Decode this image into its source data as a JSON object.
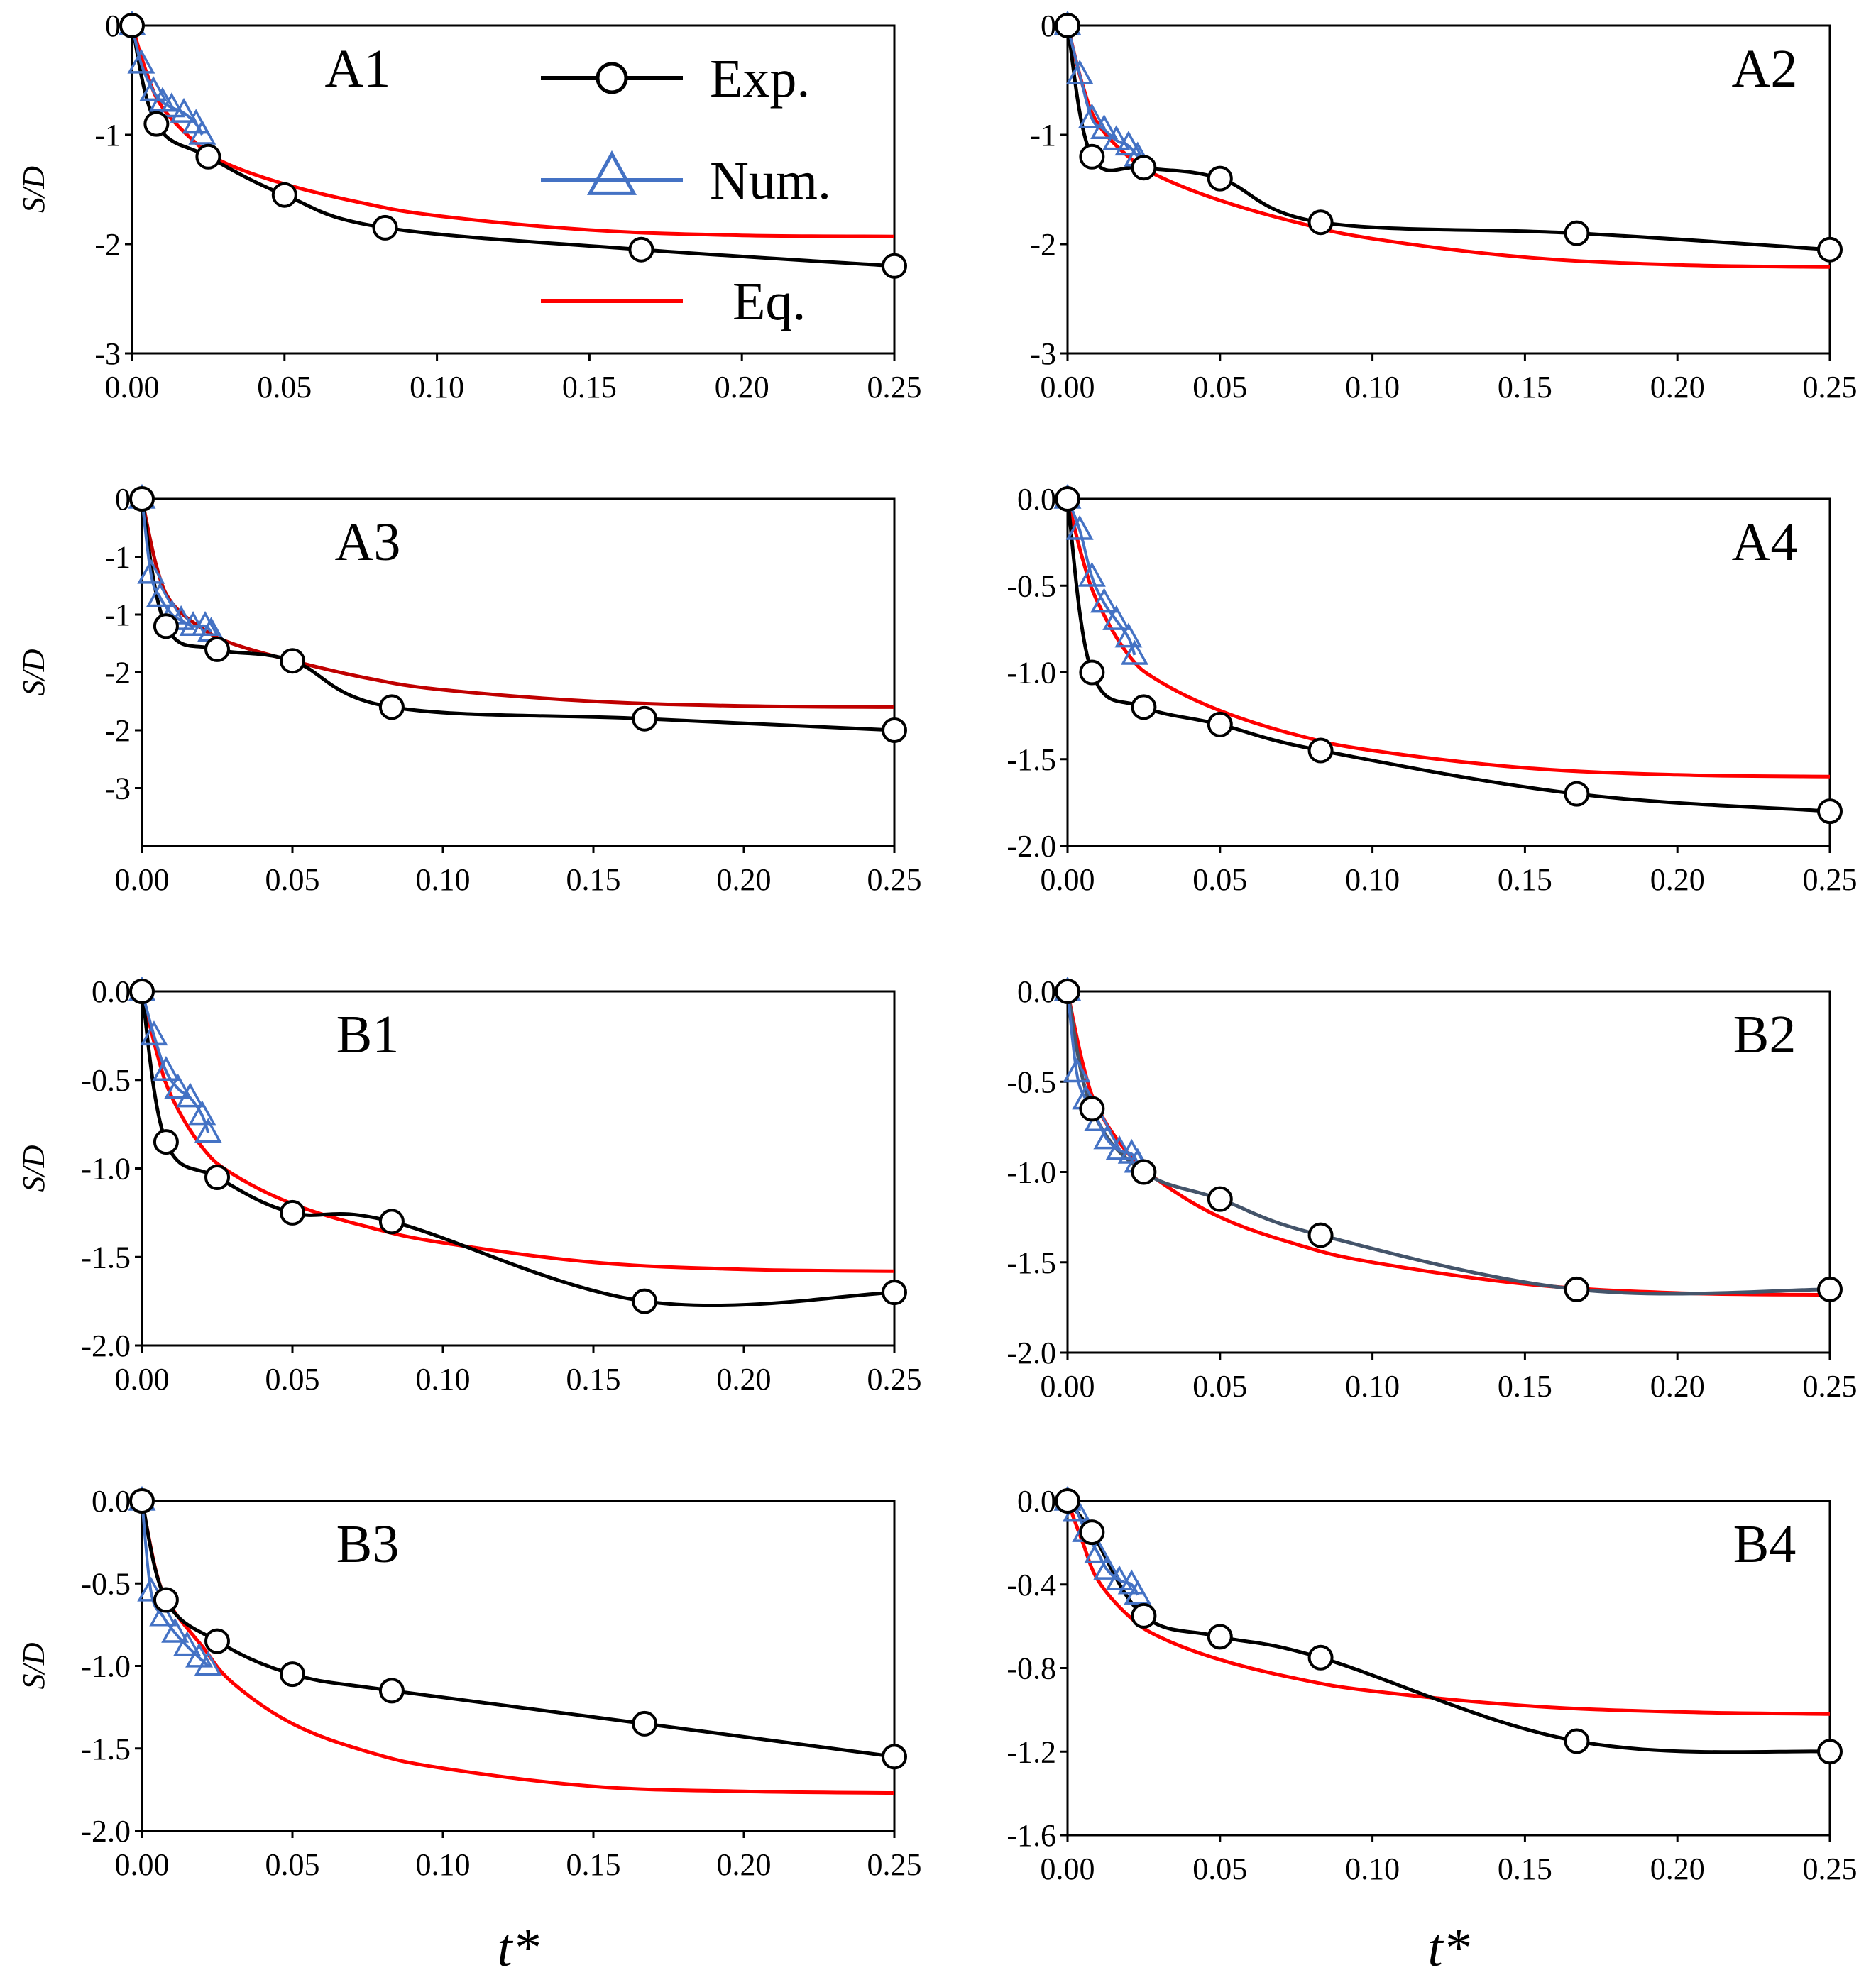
{
  "colors": {
    "exp": "#000000",
    "num": "#4472C4",
    "eq": "#FF0000",
    "eq_dark": "#C00000",
    "exp_alt": "#44546A"
  },
  "legend": [
    {
      "key": "exp",
      "label": "Exp.",
      "marker": "circle"
    },
    {
      "key": "num",
      "label": "Num.",
      "marker": "triangle"
    },
    {
      "key": "eq",
      "label": "Eq.",
      "marker": "none"
    }
  ],
  "chart_data": [
    {
      "type": "line",
      "panel": "A1",
      "ylabel": "S/D",
      "xlabel": "",
      "xlim": [
        0,
        0.25
      ],
      "ylim": [
        -3,
        0
      ],
      "xticks": [
        "0.00",
        "0.05",
        "0.10",
        "0.15",
        "0.20",
        "0.25"
      ],
      "yticks": [
        "0",
        "-1",
        "-2",
        "-3"
      ],
      "ytick_values": [
        0,
        -1,
        -2,
        -3
      ],
      "show_legend": true,
      "series": [
        {
          "name": "Exp.",
          "x": [
            0,
            0.008,
            0.025,
            0.05,
            0.083,
            0.167,
            0.25
          ],
          "y": [
            0,
            -0.9,
            -1.2,
            -1.55,
            -1.85,
            -2.05,
            -2.2
          ]
        },
        {
          "name": "Num.",
          "x": [
            0,
            0.003,
            0.007,
            0.01,
            0.013,
            0.017,
            0.021,
            0.023
          ],
          "y": [
            0,
            -0.35,
            -0.6,
            -0.7,
            -0.75,
            -0.8,
            -0.9,
            -1.0
          ]
        },
        {
          "name": "Eq.",
          "x": [
            0,
            0.005,
            0.01,
            0.02,
            0.03,
            0.05,
            0.075,
            0.1,
            0.15,
            0.2,
            0.25
          ],
          "y": [
            0,
            -0.45,
            -0.75,
            -1.05,
            -1.25,
            -1.45,
            -1.62,
            -1.74,
            -1.87,
            -1.92,
            -1.93
          ]
        }
      ]
    },
    {
      "type": "line",
      "panel": "A2",
      "ylabel": "",
      "xlabel": "",
      "xlim": [
        0,
        0.25
      ],
      "ylim": [
        -3,
        0
      ],
      "xticks": [
        "0.00",
        "0.05",
        "0.10",
        "0.15",
        "0.20",
        "0.25"
      ],
      "yticks": [
        "0",
        "-1",
        "-2",
        "-3"
      ],
      "ytick_values": [
        0,
        -1,
        -2,
        -3
      ],
      "series": [
        {
          "name": "Exp.",
          "x": [
            0,
            0.008,
            0.025,
            0.05,
            0.083,
            0.167,
            0.25
          ],
          "y": [
            0,
            -1.2,
            -1.3,
            -1.4,
            -1.8,
            -1.9,
            -2.05
          ]
        },
        {
          "name": "Num.",
          "x": [
            0,
            0.004,
            0.008,
            0.012,
            0.016,
            0.02,
            0.023
          ],
          "y": [
            0,
            -0.45,
            -0.85,
            -0.95,
            -1.05,
            -1.1,
            -1.2
          ]
        },
        {
          "name": "Eq.",
          "x": [
            0,
            0.005,
            0.01,
            0.02,
            0.03,
            0.05,
            0.075,
            0.1,
            0.15,
            0.2,
            0.25
          ],
          "y": [
            0,
            -0.55,
            -0.9,
            -1.2,
            -1.38,
            -1.6,
            -1.8,
            -1.95,
            -2.12,
            -2.19,
            -2.21
          ]
        }
      ]
    },
    {
      "type": "line",
      "panel": "A3",
      "ylabel": "S/D",
      "xlabel": "",
      "xlim": [
        0,
        0.25
      ],
      "ylim": [
        -3,
        0
      ],
      "xticks": [
        "0.00",
        "0.05",
        "0.10",
        "0.15",
        "0.20",
        "0.25"
      ],
      "yticks": [
        "0",
        "-1",
        "-1",
        "-2",
        "-2",
        "-3"
      ],
      "ytick_values": [
        0,
        -0.5,
        -1,
        -1.5,
        -2,
        -2.5
      ],
      "series": [
        {
          "name": "Exp.",
          "x": [
            0,
            0.008,
            0.025,
            0.05,
            0.083,
            0.167,
            0.25
          ],
          "y": [
            0,
            -1.1,
            -1.3,
            -1.4,
            -1.8,
            -1.9,
            -2.0
          ]
        },
        {
          "name": "Num.",
          "x": [
            0,
            0.003,
            0.006,
            0.01,
            0.013,
            0.017,
            0.021,
            0.023
          ],
          "y": [
            0,
            -0.65,
            -0.85,
            -1.0,
            -1.05,
            -1.1,
            -1.1,
            -1.15
          ]
        },
        {
          "name": "Eq.",
          "x": [
            0,
            0.005,
            0.01,
            0.02,
            0.03,
            0.05,
            0.075,
            0.1,
            0.15,
            0.2,
            0.25
          ],
          "y": [
            0,
            -0.6,
            -0.9,
            -1.12,
            -1.25,
            -1.4,
            -1.55,
            -1.65,
            -1.75,
            -1.79,
            -1.8
          ]
        }
      ]
    },
    {
      "type": "line",
      "panel": "A4",
      "ylabel": "",
      "xlabel": "",
      "xlim": [
        0,
        0.25
      ],
      "ylim": [
        -2,
        0
      ],
      "xticks": [
        "0.00",
        "0.05",
        "0.10",
        "0.15",
        "0.20",
        "0.25"
      ],
      "yticks": [
        "0.0",
        "-0.5",
        "-1.0",
        "-1.5",
        "-2.0"
      ],
      "ytick_values": [
        0,
        -0.5,
        -1,
        -1.5,
        -2
      ],
      "series": [
        {
          "name": "Exp.",
          "x": [
            0,
            0.008,
            0.025,
            0.05,
            0.083,
            0.167,
            0.25
          ],
          "y": [
            0,
            -1.0,
            -1.2,
            -1.3,
            -1.45,
            -1.7,
            -1.8
          ]
        },
        {
          "name": "Num.",
          "x": [
            0,
            0.004,
            0.008,
            0.012,
            0.016,
            0.02,
            0.022
          ],
          "y": [
            0,
            -0.18,
            -0.45,
            -0.6,
            -0.7,
            -0.8,
            -0.9
          ]
        },
        {
          "name": "Eq.",
          "x": [
            0,
            0.005,
            0.01,
            0.02,
            0.03,
            0.05,
            0.075,
            0.1,
            0.15,
            0.2,
            0.25
          ],
          "y": [
            0,
            -0.35,
            -0.6,
            -0.9,
            -1.05,
            -1.22,
            -1.36,
            -1.45,
            -1.55,
            -1.59,
            -1.6
          ]
        }
      ]
    },
    {
      "type": "line",
      "panel": "B1",
      "ylabel": "S/D",
      "xlabel": "",
      "xlim": [
        0,
        0.25
      ],
      "ylim": [
        -2,
        0
      ],
      "xticks": [
        "0.00",
        "0.05",
        "0.10",
        "0.15",
        "0.20",
        "0.25"
      ],
      "yticks": [
        "0.0",
        "-0.5",
        "-1.0",
        "-1.5",
        "-2.0"
      ],
      "ytick_values": [
        0,
        -0.5,
        -1,
        -1.5,
        -2
      ],
      "series": [
        {
          "name": "Exp.",
          "x": [
            0,
            0.008,
            0.025,
            0.05,
            0.083,
            0.167,
            0.25
          ],
          "y": [
            0,
            -0.85,
            -1.05,
            -1.25,
            -1.3,
            -1.75,
            -1.7
          ]
        },
        {
          "name": "Num.",
          "x": [
            0,
            0.004,
            0.008,
            0.012,
            0.016,
            0.02,
            0.022
          ],
          "y": [
            0,
            -0.25,
            -0.45,
            -0.55,
            -0.6,
            -0.7,
            -0.8
          ]
        },
        {
          "name": "Eq.",
          "x": [
            0,
            0.005,
            0.01,
            0.02,
            0.03,
            0.05,
            0.075,
            0.1,
            0.15,
            0.2,
            0.25
          ],
          "y": [
            0,
            -0.35,
            -0.6,
            -0.88,
            -1.03,
            -1.2,
            -1.33,
            -1.42,
            -1.53,
            -1.57,
            -1.58
          ]
        }
      ]
    },
    {
      "type": "line",
      "panel": "B2",
      "ylabel": "",
      "xlabel": "",
      "xlim": [
        0,
        0.25
      ],
      "ylim": [
        -2,
        0
      ],
      "xticks": [
        "0.00",
        "0.05",
        "0.10",
        "0.15",
        "0.20",
        "0.25"
      ],
      "yticks": [
        "0.0",
        "-0.5",
        "-1.0",
        "-1.5",
        "-2.0"
      ],
      "ytick_values": [
        0,
        -0.5,
        -1,
        -1.5,
        -2
      ],
      "series": [
        {
          "name": "Exp.",
          "x": [
            0,
            0.008,
            0.025,
            0.05,
            0.083,
            0.167,
            0.25
          ],
          "y": [
            0,
            -0.65,
            -1.0,
            -1.15,
            -1.35,
            -1.65,
            -1.65
          ]
        },
        {
          "name": "Num.",
          "x": [
            0,
            0.003,
            0.006,
            0.01,
            0.013,
            0.017,
            0.021,
            0.023
          ],
          "y": [
            0,
            -0.45,
            -0.6,
            -0.72,
            -0.82,
            -0.88,
            -0.9,
            -0.95
          ]
        },
        {
          "name": "Eq.",
          "x": [
            0,
            0.005,
            0.01,
            0.02,
            0.03,
            0.05,
            0.075,
            0.1,
            0.15,
            0.2,
            0.25
          ],
          "y": [
            0,
            -0.4,
            -0.65,
            -0.9,
            -1.05,
            -1.25,
            -1.4,
            -1.5,
            -1.62,
            -1.67,
            -1.68
          ]
        }
      ]
    },
    {
      "type": "line",
      "panel": "B3",
      "ylabel": "S/D",
      "xlabel": "t*",
      "xlim": [
        0,
        0.25
      ],
      "ylim": [
        -2,
        0
      ],
      "xticks": [
        "0.00",
        "0.05",
        "0.10",
        "0.15",
        "0.20",
        "0.25"
      ],
      "yticks": [
        "0.0",
        "-0.5",
        "-1.0",
        "-1.5",
        "-2.0"
      ],
      "ytick_values": [
        0,
        -0.5,
        -1,
        -1.5,
        -2
      ],
      "series": [
        {
          "name": "Exp.",
          "x": [
            0,
            0.008,
            0.025,
            0.05,
            0.083,
            0.167,
            0.25
          ],
          "y": [
            0,
            -0.6,
            -0.85,
            -1.05,
            -1.15,
            -1.35,
            -1.55
          ]
        },
        {
          "name": "Num.",
          "x": [
            0,
            0.003,
            0.007,
            0.011,
            0.015,
            0.019,
            0.022
          ],
          "y": [
            0,
            -0.55,
            -0.7,
            -0.8,
            -0.88,
            -0.95,
            -1.0
          ]
        },
        {
          "name": "Eq.",
          "x": [
            0,
            0.005,
            0.01,
            0.02,
            0.03,
            0.05,
            0.075,
            0.1,
            0.15,
            0.2,
            0.25
          ],
          "y": [
            0,
            -0.45,
            -0.65,
            -0.88,
            -1.1,
            -1.35,
            -1.52,
            -1.62,
            -1.73,
            -1.76,
            -1.77
          ]
        }
      ]
    },
    {
      "type": "line",
      "panel": "B4",
      "ylabel": "",
      "xlabel": "t*",
      "xlim": [
        0,
        0.25
      ],
      "ylim": [
        -1.6,
        0
      ],
      "xticks": [
        "0.00",
        "0.05",
        "0.10",
        "0.15",
        "0.20",
        "0.25"
      ],
      "yticks": [
        "0.0",
        "-0.4",
        "-0.8",
        "-1.2",
        "-1.6"
      ],
      "ytick_values": [
        0,
        -0.4,
        -0.8,
        -1.2,
        -1.6
      ],
      "series": [
        {
          "name": "Exp.",
          "x": [
            0,
            0.008,
            0.025,
            0.05,
            0.083,
            0.167,
            0.25
          ],
          "y": [
            0,
            -0.15,
            -0.55,
            -0.65,
            -0.75,
            -1.15,
            -1.2
          ]
        },
        {
          "name": "Num.",
          "x": [
            0,
            0.003,
            0.006,
            0.01,
            0.013,
            0.017,
            0.021,
            0.023
          ],
          "y": [
            0,
            -0.05,
            -0.15,
            -0.25,
            -0.33,
            -0.38,
            -0.4,
            -0.45
          ]
        },
        {
          "name": "Eq.",
          "x": [
            0,
            0.005,
            0.01,
            0.02,
            0.03,
            0.05,
            0.075,
            0.1,
            0.15,
            0.2,
            0.25
          ],
          "y": [
            0,
            -0.2,
            -0.38,
            -0.55,
            -0.65,
            -0.76,
            -0.85,
            -0.91,
            -0.98,
            -1.01,
            -1.02
          ]
        }
      ]
    }
  ]
}
